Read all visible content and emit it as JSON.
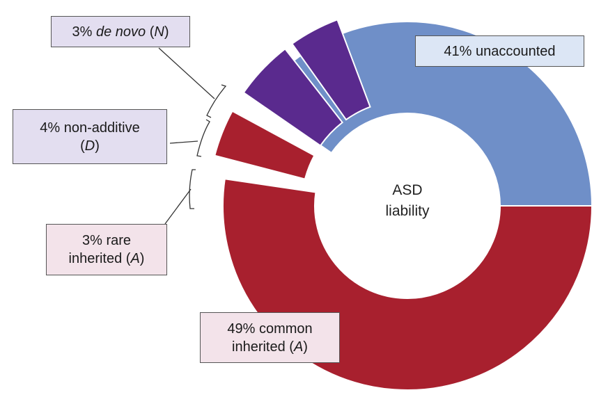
{
  "chart_data": {
    "type": "pie",
    "center_label": [
      "ASD",
      "liability"
    ],
    "slices": [
      {
        "name": "unaccounted",
        "value": 41,
        "color": "#6f8fc8"
      },
      {
        "name": "common inherited (A)",
        "value": 49,
        "color": "#a8202e"
      },
      {
        "name": "rare inherited (A)",
        "value": 3,
        "color": "#a8202e"
      },
      {
        "name": "non-additive (D)",
        "value": 4,
        "color": "#5a2a8e"
      },
      {
        "name": "de novo (N)",
        "value": 3,
        "color": "#5a2a8e"
      }
    ]
  },
  "labels": {
    "de_novo": {
      "pct": "3%",
      "name": "de novo",
      "paren_open": " (",
      "letter": "N",
      "paren_close": ")"
    },
    "non_additive": {
      "line1": "4% non-additive",
      "paren_open": "(",
      "letter": "D",
      "paren_close": ")"
    },
    "rare": {
      "line1": "3% rare",
      "line2_text": "inherited (",
      "letter": "A",
      "paren_close": ")"
    },
    "common": {
      "line1": "49% common",
      "line2_text": "inherited (",
      "letter": "A",
      "paren_close": ")"
    },
    "unaccounted": {
      "text": "41% unaccounted"
    }
  }
}
